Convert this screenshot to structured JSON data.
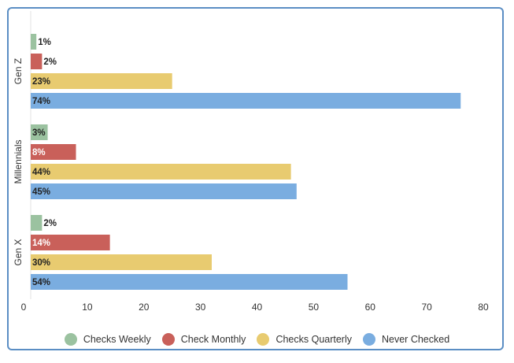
{
  "chart_data": {
    "type": "bar",
    "orientation": "horizontal",
    "categories": [
      "Gen Z",
      "Millennials",
      "Gen X"
    ],
    "series": [
      {
        "name": "Checks Weekly",
        "color": "#9bc2a0",
        "values": [
          1,
          3,
          2
        ],
        "labels": [
          "1%",
          "3%",
          "2%"
        ]
      },
      {
        "name": "Check Monthly",
        "color": "#c9605a",
        "values": [
          2,
          8,
          14
        ],
        "labels": [
          "2%",
          "8%",
          "14%"
        ]
      },
      {
        "name": "Checks Quarterly",
        "color": "#e8cb70",
        "values": [
          23,
          44,
          30
        ],
        "labels": [
          "23%",
          "44%",
          "30%"
        ]
      },
      {
        "name": "Never Checked",
        "color": "#7aade0",
        "values": [
          74,
          45,
          54
        ],
        "labels": [
          "74%",
          "45%",
          "54%"
        ]
      }
    ],
    "bar_lengths_read_from_axis": [
      [
        1,
        2,
        25,
        76
      ],
      [
        3,
        8,
        46,
        47
      ],
      [
        2,
        14,
        32,
        56
      ]
    ],
    "xlim": [
      0,
      80
    ],
    "xticks": [
      0,
      10,
      20,
      30,
      40,
      50,
      60,
      70,
      80
    ],
    "legend_position": "bottom",
    "grid": false
  }
}
